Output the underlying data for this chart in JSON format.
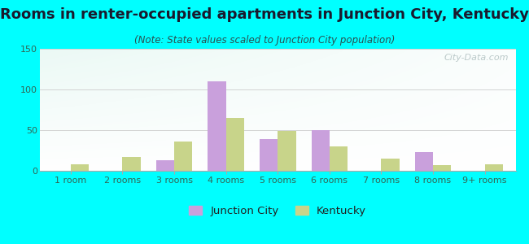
{
  "title": "Rooms in renter-occupied apartments in Junction City, Kentucky",
  "subtitle": "(Note: State values scaled to Junction City population)",
  "categories": [
    "1 room",
    "2 rooms",
    "3 rooms",
    "4 rooms",
    "5 rooms",
    "6 rooms",
    "7 rooms",
    "8 rooms",
    "9+ rooms"
  ],
  "junction_city": [
    0,
    0,
    13,
    110,
    39,
    50,
    0,
    23,
    0
  ],
  "kentucky": [
    8,
    17,
    36,
    65,
    49,
    30,
    15,
    7,
    8
  ],
  "jc_color": "#c9a0dc",
  "ky_color": "#c8d48a",
  "bg_color": "#00ffff",
  "ylim": [
    0,
    150
  ],
  "yticks": [
    0,
    50,
    100,
    150
  ],
  "bar_width": 0.35,
  "title_fontsize": 13,
  "subtitle_fontsize": 8.5,
  "tick_fontsize": 8,
  "legend_fontsize": 9.5,
  "title_color": "#1a1a2e",
  "subtitle_color": "#2a5050",
  "tick_color": "#336655",
  "watermark": "City-Data.com"
}
